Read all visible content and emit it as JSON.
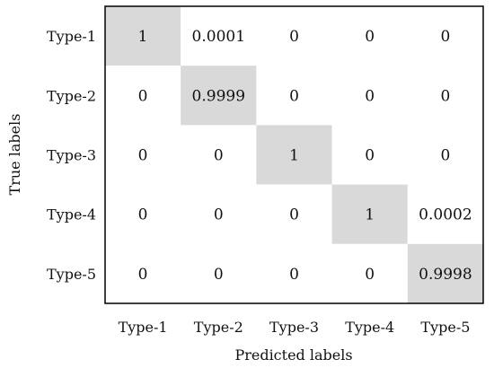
{
  "chart_data": {
    "type": "heatmap",
    "title": "",
    "xlabel": "Predicted labels",
    "ylabel": "True labels",
    "x_categories": [
      "Type-1",
      "Type-2",
      "Type-3",
      "Type-4",
      "Type-5"
    ],
    "y_categories": [
      "Type-1",
      "Type-2",
      "Type-3",
      "Type-4",
      "Type-5"
    ],
    "values": [
      [
        "1",
        "0.0001",
        "0",
        "0",
        "0"
      ],
      [
        "0",
        "0.9999",
        "0",
        "0",
        "0"
      ],
      [
        "0",
        "0",
        "1",
        "0",
        "0"
      ],
      [
        "0",
        "0",
        "0",
        "1",
        "0.0002"
      ],
      [
        "0",
        "0",
        "0",
        "0",
        "0.9998"
      ]
    ],
    "highlight_color": "#d9d9d9",
    "background_color": "#ffffff",
    "grid": false,
    "legend": "none"
  }
}
